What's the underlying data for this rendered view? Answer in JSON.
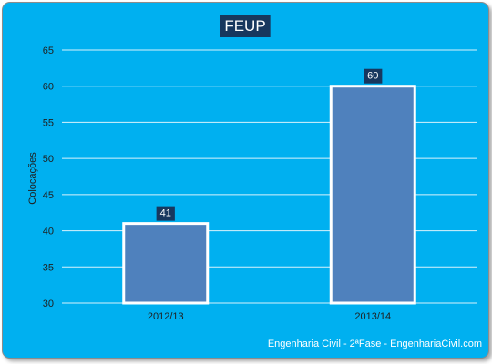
{
  "colors": {
    "background": "#00b0f0",
    "bar": "#4f81bd",
    "label_box": "#17375e"
  },
  "footer": "Engenharia Civil - 2ªFase - EngenhariaCivil.com",
  "chart_data": {
    "type": "bar",
    "title": "FEUP",
    "xlabel": "",
    "ylabel": "Colocações",
    "categories": [
      "2012/13",
      "2013/14"
    ],
    "values": [
      41,
      60
    ],
    "ylim": [
      30,
      65
    ],
    "yticks": [
      30,
      35,
      40,
      45,
      50,
      55,
      60,
      65
    ],
    "grid": true,
    "legend": "none",
    "data_labels": true
  }
}
